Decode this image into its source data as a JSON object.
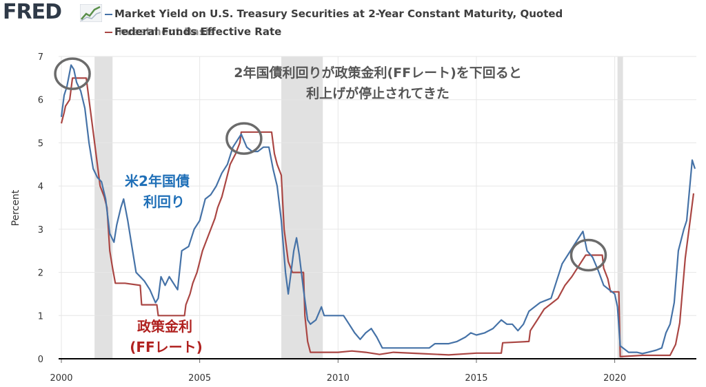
{
  "header": {
    "logo": "FRED",
    "logo_icon": "line-chart-icon",
    "legend": [
      {
        "label": "Market Yield on U.S. Treasury Securities at 2-Year Constant Maturity, Quoted",
        "color": "#4572a7"
      },
      {
        "label": "Federal Funds Effective Rate",
        "color": "#aa4643"
      }
    ],
    "legend_overlap_text": "Investment Basis"
  },
  "annotations": {
    "headline": [
      "2年国債利回りが政策金利(FFレート)を下回ると",
      "利上げが停止されてきた"
    ],
    "blue_label": [
      "米2年国債",
      "利回り"
    ],
    "red_label": [
      "政策金利",
      "(FFレート)"
    ]
  },
  "chart_data": {
    "type": "line",
    "ylabel": "Percent",
    "ylim": [
      0,
      7
    ],
    "xlim": [
      1999.9,
      2022.95
    ],
    "x_ticks": [
      "2000",
      "2005",
      "2010",
      "2015",
      "2020"
    ],
    "y_ticks": [
      "0",
      "1",
      "2",
      "3",
      "4",
      "5",
      "6",
      "7"
    ],
    "grid": true,
    "recessions": [
      [
        2001.2,
        2001.85
      ],
      [
        2007.95,
        2009.45
      ],
      [
        2020.1,
        2020.3
      ]
    ],
    "highlight_circles": [
      {
        "x": 2000.4,
        "y": 6.6
      },
      {
        "x": 2006.6,
        "y": 5.1
      },
      {
        "x": 2019.05,
        "y": 2.4
      }
    ],
    "series": [
      {
        "name": "Market Yield on U.S. Treasury Securities at 2-Year Constant Maturity, Quoted",
        "color": "#4572a7",
        "points": [
          [
            2000.0,
            5.6
          ],
          [
            2000.1,
            6.1
          ],
          [
            2000.2,
            6.3
          ],
          [
            2000.35,
            6.8
          ],
          [
            2000.45,
            6.7
          ],
          [
            2000.55,
            6.4
          ],
          [
            2000.7,
            6.2
          ],
          [
            2000.85,
            5.8
          ],
          [
            2001.0,
            5.0
          ],
          [
            2001.15,
            4.4
          ],
          [
            2001.3,
            4.2
          ],
          [
            2001.45,
            4.1
          ],
          [
            2001.6,
            3.7
          ],
          [
            2001.75,
            2.9
          ],
          [
            2001.9,
            2.7
          ],
          [
            2002.0,
            3.1
          ],
          [
            2002.15,
            3.5
          ],
          [
            2002.25,
            3.7
          ],
          [
            2002.4,
            3.2
          ],
          [
            2002.55,
            2.6
          ],
          [
            2002.7,
            2.0
          ],
          [
            2002.85,
            1.9
          ],
          [
            2003.0,
            1.8
          ],
          [
            2003.2,
            1.6
          ],
          [
            2003.4,
            1.3
          ],
          [
            2003.5,
            1.4
          ],
          [
            2003.6,
            1.9
          ],
          [
            2003.75,
            1.7
          ],
          [
            2003.9,
            1.9
          ],
          [
            2004.0,
            1.8
          ],
          [
            2004.2,
            1.6
          ],
          [
            2004.35,
            2.5
          ],
          [
            2004.6,
            2.6
          ],
          [
            2004.8,
            3.0
          ],
          [
            2005.0,
            3.2
          ],
          [
            2005.2,
            3.7
          ],
          [
            2005.4,
            3.8
          ],
          [
            2005.6,
            4.0
          ],
          [
            2005.8,
            4.3
          ],
          [
            2006.0,
            4.5
          ],
          [
            2006.2,
            4.9
          ],
          [
            2006.4,
            5.1
          ],
          [
            2006.5,
            5.2
          ],
          [
            2006.7,
            4.9
          ],
          [
            2006.9,
            4.8
          ],
          [
            2007.1,
            4.8
          ],
          [
            2007.3,
            4.9
          ],
          [
            2007.5,
            4.9
          ],
          [
            2007.65,
            4.4
          ],
          [
            2007.8,
            4.0
          ],
          [
            2007.95,
            3.2
          ],
          [
            2008.1,
            2.0
          ],
          [
            2008.2,
            1.5
          ],
          [
            2008.4,
            2.5
          ],
          [
            2008.5,
            2.8
          ],
          [
            2008.6,
            2.4
          ],
          [
            2008.75,
            1.6
          ],
          [
            2008.9,
            0.9
          ],
          [
            2009.0,
            0.8
          ],
          [
            2009.2,
            0.9
          ],
          [
            2009.4,
            1.2
          ],
          [
            2009.5,
            1.0
          ],
          [
            2009.75,
            1.0
          ],
          [
            2010.0,
            1.0
          ],
          [
            2010.2,
            1.0
          ],
          [
            2010.4,
            0.8
          ],
          [
            2010.6,
            0.6
          ],
          [
            2010.8,
            0.45
          ],
          [
            2011.0,
            0.6
          ],
          [
            2011.2,
            0.7
          ],
          [
            2011.4,
            0.5
          ],
          [
            2011.6,
            0.25
          ],
          [
            2011.8,
            0.25
          ],
          [
            2012.0,
            0.25
          ],
          [
            2012.5,
            0.25
          ],
          [
            2013.0,
            0.25
          ],
          [
            2013.3,
            0.25
          ],
          [
            2013.5,
            0.35
          ],
          [
            2013.8,
            0.35
          ],
          [
            2014.0,
            0.35
          ],
          [
            2014.3,
            0.4
          ],
          [
            2014.6,
            0.5
          ],
          [
            2014.8,
            0.6
          ],
          [
            2015.0,
            0.55
          ],
          [
            2015.3,
            0.6
          ],
          [
            2015.6,
            0.7
          ],
          [
            2015.9,
            0.9
          ],
          [
            2016.1,
            0.8
          ],
          [
            2016.3,
            0.8
          ],
          [
            2016.5,
            0.65
          ],
          [
            2016.7,
            0.8
          ],
          [
            2016.9,
            1.1
          ],
          [
            2017.1,
            1.2
          ],
          [
            2017.3,
            1.3
          ],
          [
            2017.5,
            1.35
          ],
          [
            2017.7,
            1.4
          ],
          [
            2017.9,
            1.8
          ],
          [
            2018.1,
            2.2
          ],
          [
            2018.3,
            2.4
          ],
          [
            2018.5,
            2.6
          ],
          [
            2018.7,
            2.8
          ],
          [
            2018.85,
            2.95
          ],
          [
            2019.0,
            2.5
          ],
          [
            2019.2,
            2.35
          ],
          [
            2019.4,
            2.05
          ],
          [
            2019.6,
            1.7
          ],
          [
            2019.8,
            1.6
          ],
          [
            2020.0,
            1.5
          ],
          [
            2020.1,
            1.2
          ],
          [
            2020.2,
            0.3
          ],
          [
            2020.5,
            0.15
          ],
          [
            2020.8,
            0.15
          ],
          [
            2021.0,
            0.12
          ],
          [
            2021.2,
            0.15
          ],
          [
            2021.5,
            0.2
          ],
          [
            2021.7,
            0.25
          ],
          [
            2021.85,
            0.6
          ],
          [
            2022.0,
            0.8
          ],
          [
            2022.15,
            1.3
          ],
          [
            2022.3,
            2.5
          ],
          [
            2022.5,
            3.0
          ],
          [
            2022.6,
            3.2
          ],
          [
            2022.7,
            3.9
          ],
          [
            2022.8,
            4.6
          ],
          [
            2022.9,
            4.4
          ]
        ]
      },
      {
        "name": "Federal Funds Effective Rate",
        "color": "#aa4643",
        "points": [
          [
            2000.0,
            5.45
          ],
          [
            2000.1,
            5.7
          ],
          [
            2000.15,
            5.85
          ],
          [
            2000.3,
            6.0
          ],
          [
            2000.4,
            6.5
          ],
          [
            2000.6,
            6.5
          ],
          [
            2000.9,
            6.5
          ],
          [
            2001.0,
            6.0
          ],
          [
            2001.1,
            5.5
          ],
          [
            2001.2,
            5.0
          ],
          [
            2001.3,
            4.5
          ],
          [
            2001.4,
            4.0
          ],
          [
            2001.55,
            3.75
          ],
          [
            2001.65,
            3.5
          ],
          [
            2001.75,
            2.5
          ],
          [
            2001.85,
            2.1
          ],
          [
            2001.95,
            1.75
          ],
          [
            2002.3,
            1.75
          ],
          [
            2002.85,
            1.7
          ],
          [
            2002.9,
            1.25
          ],
          [
            2003.45,
            1.25
          ],
          [
            2003.5,
            1.0
          ],
          [
            2004.45,
            1.0
          ],
          [
            2004.5,
            1.25
          ],
          [
            2004.65,
            1.5
          ],
          [
            2004.75,
            1.75
          ],
          [
            2004.9,
            2.0
          ],
          [
            2005.0,
            2.25
          ],
          [
            2005.1,
            2.5
          ],
          [
            2005.25,
            2.75
          ],
          [
            2005.4,
            3.0
          ],
          [
            2005.55,
            3.25
          ],
          [
            2005.65,
            3.5
          ],
          [
            2005.8,
            3.75
          ],
          [
            2005.9,
            4.0
          ],
          [
            2006.1,
            4.5
          ],
          [
            2006.3,
            4.75
          ],
          [
            2006.45,
            5.0
          ],
          [
            2006.5,
            5.25
          ],
          [
            2007.6,
            5.25
          ],
          [
            2007.7,
            4.75
          ],
          [
            2007.8,
            4.5
          ],
          [
            2007.95,
            4.25
          ],
          [
            2008.05,
            3.0
          ],
          [
            2008.2,
            2.25
          ],
          [
            2008.35,
            2.0
          ],
          [
            2008.75,
            2.0
          ],
          [
            2008.8,
            1.0
          ],
          [
            2008.9,
            0.4
          ],
          [
            2009.0,
            0.15
          ],
          [
            2009.5,
            0.15
          ],
          [
            2010.0,
            0.15
          ],
          [
            2010.5,
            0.18
          ],
          [
            2011.0,
            0.15
          ],
          [
            2011.5,
            0.1
          ],
          [
            2012.0,
            0.15
          ],
          [
            2013.0,
            0.12
          ],
          [
            2014.0,
            0.09
          ],
          [
            2015.0,
            0.13
          ],
          [
            2015.9,
            0.13
          ],
          [
            2015.95,
            0.37
          ],
          [
            2016.9,
            0.4
          ],
          [
            2016.95,
            0.65
          ],
          [
            2017.2,
            0.9
          ],
          [
            2017.45,
            1.15
          ],
          [
            2017.95,
            1.4
          ],
          [
            2018.2,
            1.7
          ],
          [
            2018.45,
            1.9
          ],
          [
            2018.7,
            2.15
          ],
          [
            2018.95,
            2.4
          ],
          [
            2019.55,
            2.4
          ],
          [
            2019.6,
            2.1
          ],
          [
            2019.75,
            1.85
          ],
          [
            2019.85,
            1.55
          ],
          [
            2020.15,
            1.55
          ],
          [
            2020.2,
            0.05
          ],
          [
            2021.0,
            0.08
          ],
          [
            2022.0,
            0.08
          ],
          [
            2022.2,
            0.33
          ],
          [
            2022.35,
            0.83
          ],
          [
            2022.45,
            1.58
          ],
          [
            2022.55,
            2.33
          ],
          [
            2022.7,
            3.08
          ],
          [
            2022.85,
            3.83
          ]
        ]
      }
    ]
  }
}
